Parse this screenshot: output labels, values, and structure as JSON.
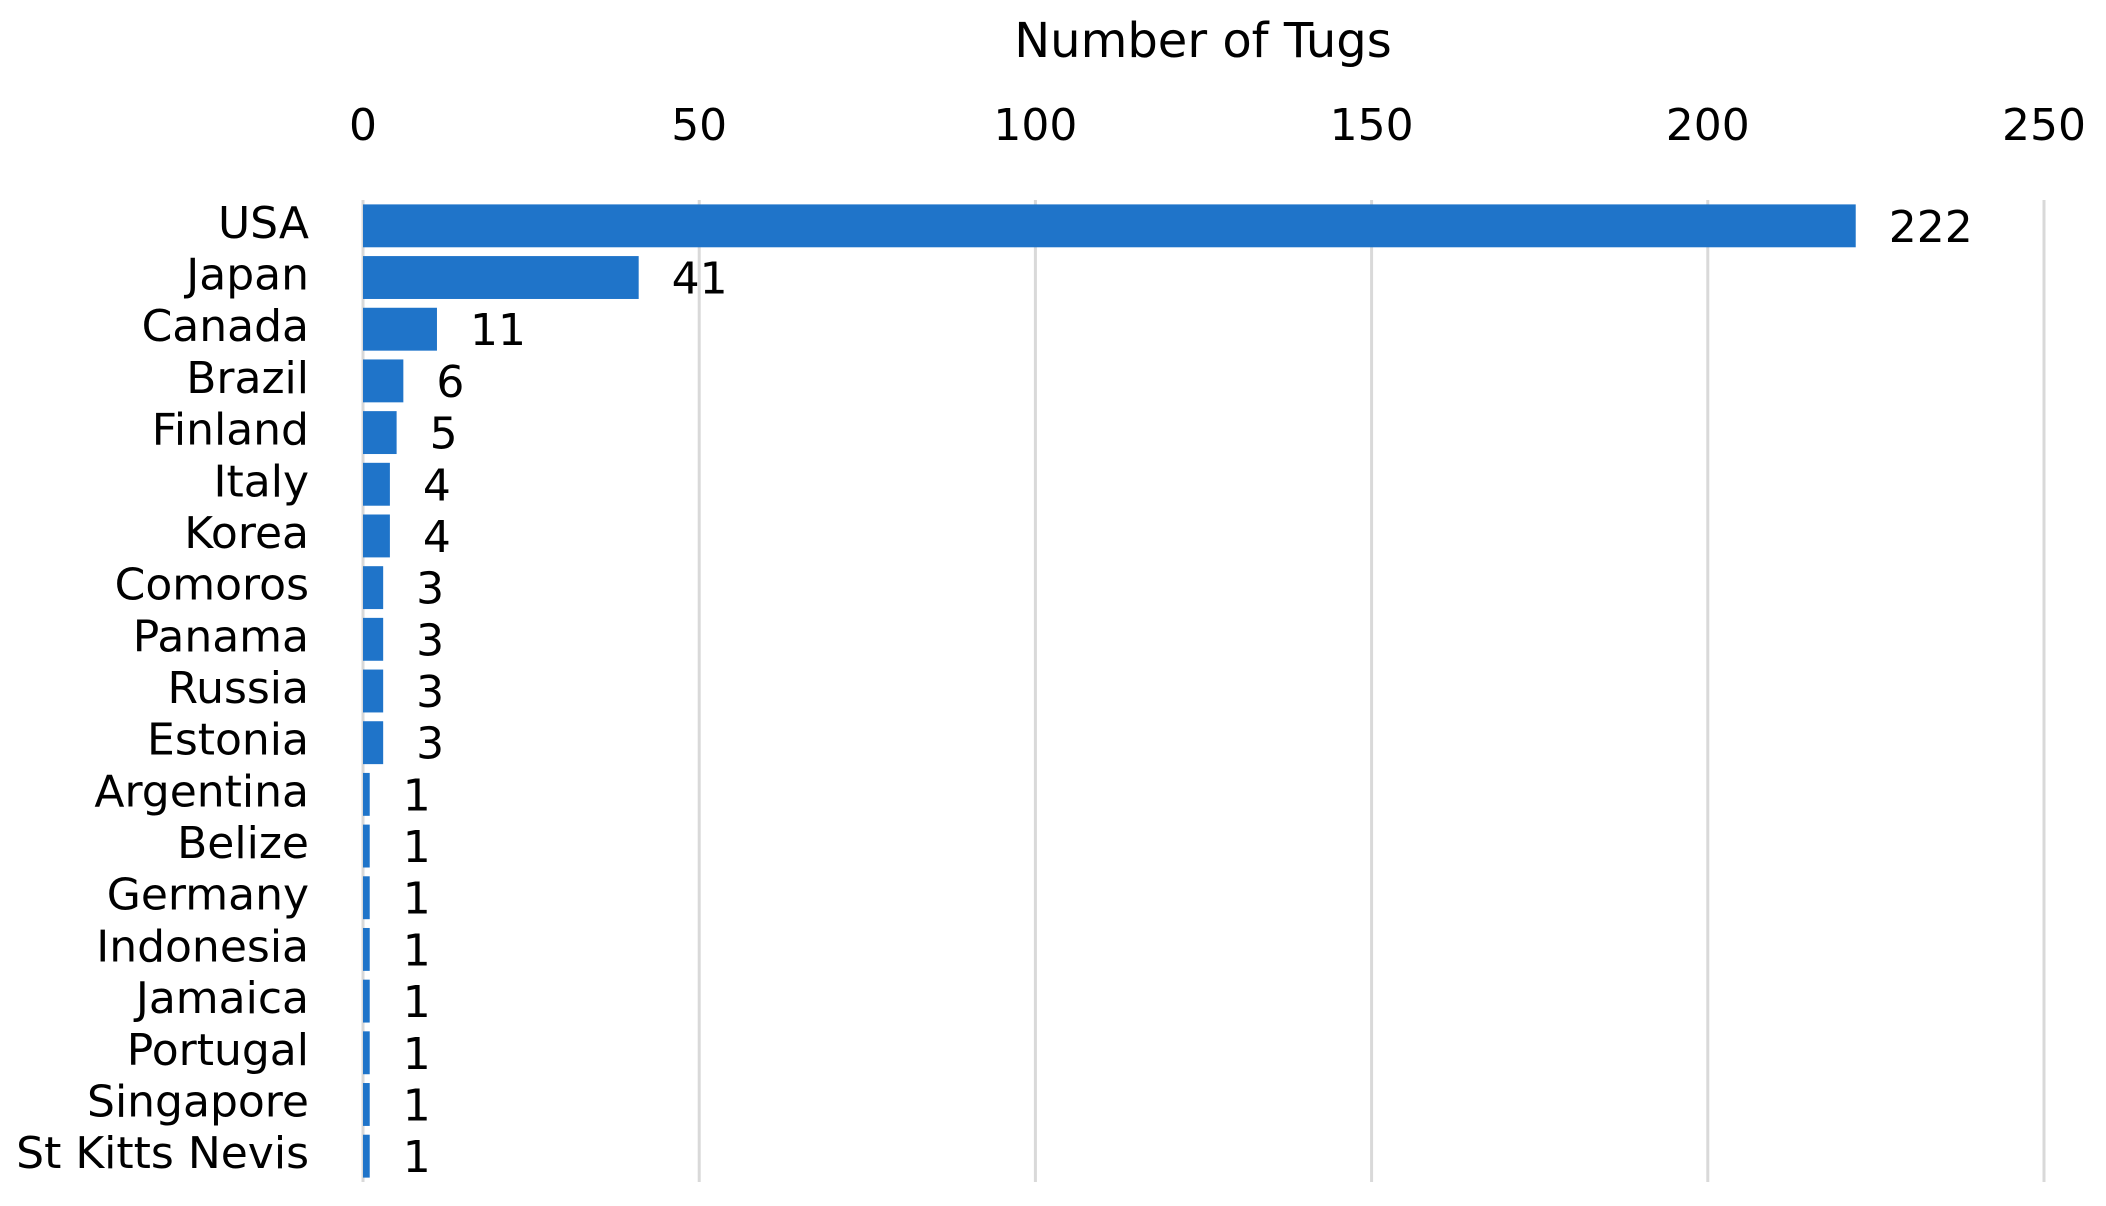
{
  "chart_data": {
    "type": "bar",
    "orientation": "horizontal",
    "x_axis_title": "Number of Tugs",
    "categories": [
      "USA",
      "Japan",
      "Canada",
      "Brazil",
      "Finland",
      "Italy",
      "Korea",
      "Comoros",
      "Panama",
      "Russia",
      "Estonia",
      "Argentina",
      "Belize",
      "Germany",
      "Indonesia",
      "Jamaica",
      "Portugal",
      "Singapore",
      "St Kitts Nevis"
    ],
    "values": [
      222,
      41,
      11,
      6,
      5,
      4,
      4,
      3,
      3,
      3,
      3,
      1,
      1,
      1,
      1,
      1,
      1,
      1,
      1
    ],
    "color": "#1f74c9",
    "xlim": [
      0,
      250
    ],
    "xticks": [
      0,
      50,
      100,
      150,
      200,
      250
    ],
    "grid": true
  }
}
